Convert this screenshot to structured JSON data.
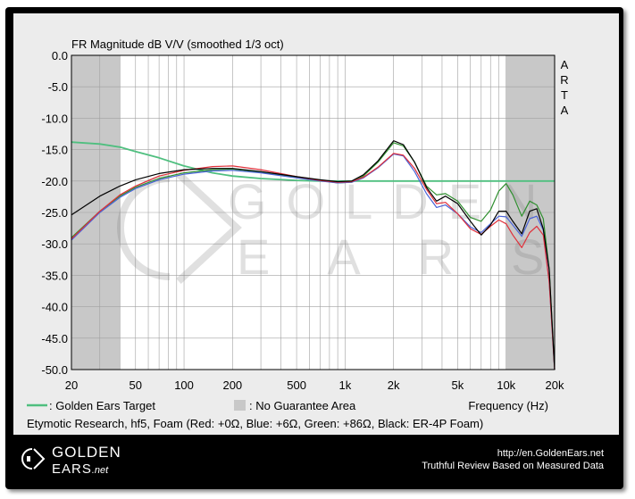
{
  "chart_data": {
    "type": "line",
    "title": "FR Magnitude dB V/V (smoothed 1/3 oct)",
    "side_label": [
      "A",
      "R",
      "T",
      "A"
    ],
    "xlabel": "Frequency (Hz)",
    "x_scale": "log",
    "xlim": [
      20,
      20000
    ],
    "ylim": [
      -50,
      0
    ],
    "x_ticks": [
      20,
      50,
      100,
      200,
      500,
      1000,
      2000,
      5000,
      10000,
      20000
    ],
    "x_tick_labels": [
      "20",
      "50",
      "100",
      "200",
      "500",
      "1k",
      "2k",
      "5k",
      "10k",
      "20k"
    ],
    "y_ticks": [
      0,
      -5,
      -10,
      -15,
      -20,
      -25,
      -30,
      -35,
      -40,
      -45,
      -50
    ],
    "y_tick_labels": [
      "0.0",
      "-5.0",
      "-10.0",
      "-15.0",
      "-20.0",
      "-25.0",
      "-30.0",
      "-35.0",
      "-40.0",
      "-45.0",
      "-50.0"
    ],
    "grid": true,
    "shaded_regions": [
      {
        "x_from": 20,
        "x_to": 40
      },
      {
        "x_from": 10000,
        "x_to": 20000
      }
    ],
    "series": [
      {
        "key": "target",
        "color": "#4fbf7f",
        "x": [
          20,
          30,
          40,
          50,
          70,
          100,
          150,
          200,
          300,
          500,
          700,
          1000,
          1500,
          2000,
          3000,
          5000,
          7000,
          10000,
          15000,
          20000
        ],
        "y": [
          -13.8,
          -14.1,
          -14.6,
          -15.3,
          -16.3,
          -17.6,
          -18.7,
          -19.2,
          -19.6,
          -19.9,
          -20.0,
          -20.0,
          -20.0,
          -20.0,
          -20.0,
          -20.0,
          -20.0,
          -20.0,
          -20.0,
          -20.0
        ]
      },
      {
        "key": "red",
        "color": "#e0303a",
        "x": [
          20,
          30,
          40,
          50,
          70,
          100,
          150,
          200,
          300,
          500,
          700,
          900,
          1100,
          1300,
          1600,
          2000,
          2300,
          2700,
          3200,
          3700,
          4200,
          5000,
          6000,
          7000,
          8000,
          9000,
          10000,
          11000,
          12500,
          14000,
          15500,
          17000,
          18500,
          20000
        ],
        "y": [
          -29.2,
          -24.8,
          -22.2,
          -20.8,
          -19.2,
          -18.3,
          -17.7,
          -17.6,
          -18.2,
          -19.3,
          -19.9,
          -20.2,
          -20.1,
          -19.4,
          -17.8,
          -15.6,
          -15.9,
          -18.0,
          -21.3,
          -23.6,
          -23.4,
          -25.2,
          -27.6,
          -28.5,
          -27.2,
          -26.2,
          -26.8,
          -28.6,
          -30.6,
          -28.2,
          -27.2,
          -28.6,
          -36.0,
          -50.0
        ]
      },
      {
        "key": "blue",
        "color": "#4a63d8",
        "x": [
          20,
          30,
          40,
          50,
          70,
          100,
          150,
          200,
          300,
          500,
          700,
          900,
          1100,
          1300,
          1600,
          2000,
          2300,
          2700,
          3200,
          3700,
          4200,
          5000,
          6000,
          7000,
          8000,
          9000,
          10000,
          11000,
          12500,
          14000,
          15500,
          17000,
          18500,
          20000
        ],
        "y": [
          -29.4,
          -25.0,
          -22.6,
          -21.2,
          -19.8,
          -18.9,
          -18.4,
          -18.3,
          -18.7,
          -19.5,
          -20.0,
          -20.3,
          -20.2,
          -19.5,
          -17.9,
          -15.7,
          -16.0,
          -18.5,
          -22.0,
          -24.2,
          -23.8,
          -25.2,
          -27.3,
          -28.2,
          -26.8,
          -25.6,
          -25.7,
          -27.0,
          -28.8,
          -26.0,
          -25.6,
          -27.8,
          -36.0,
          -50.0
        ]
      },
      {
        "key": "green",
        "color": "#2f8f2f",
        "x": [
          20,
          30,
          40,
          50,
          70,
          100,
          150,
          200,
          300,
          500,
          700,
          900,
          1100,
          1300,
          1600,
          2000,
          2300,
          2700,
          3200,
          3700,
          4200,
          5000,
          6000,
          7000,
          8000,
          9000,
          10000,
          11000,
          12500,
          14000,
          15500,
          17000,
          18500,
          20000
        ],
        "y": [
          -29.0,
          -24.8,
          -22.4,
          -21.0,
          -19.6,
          -18.7,
          -18.2,
          -18.1,
          -18.6,
          -19.4,
          -19.9,
          -20.3,
          -20.2,
          -19.2,
          -17.0,
          -13.9,
          -14.4,
          -17.0,
          -20.8,
          -22.2,
          -22.0,
          -23.2,
          -25.8,
          -26.4,
          -24.6,
          -21.6,
          -20.4,
          -22.2,
          -25.6,
          -23.2,
          -23.8,
          -26.0,
          -34.0,
          -50.0
        ]
      },
      {
        "key": "black",
        "color": "#000000",
        "x": [
          20,
          30,
          40,
          50,
          70,
          100,
          150,
          200,
          300,
          500,
          700,
          900,
          1100,
          1300,
          1600,
          2000,
          2300,
          2700,
          3200,
          3700,
          4200,
          5000,
          6000,
          7000,
          8000,
          9000,
          10000,
          11000,
          12500,
          14000,
          15500,
          17000,
          18500,
          20000
        ],
        "y": [
          -25.4,
          -22.4,
          -20.8,
          -19.8,
          -18.8,
          -18.2,
          -18.0,
          -18.0,
          -18.5,
          -19.3,
          -19.8,
          -20.1,
          -20.0,
          -19.0,
          -16.8,
          -13.6,
          -14.2,
          -17.0,
          -21.0,
          -23.2,
          -22.4,
          -23.6,
          -26.4,
          -28.6,
          -27.0,
          -24.8,
          -24.8,
          -26.4,
          -28.4,
          -24.8,
          -24.4,
          -27.6,
          -34.0,
          -50.0
        ]
      }
    ],
    "legend": [
      {
        "swatch": "line",
        "color": "#4fbf7f",
        "text": ": Golden Ears Target"
      },
      {
        "swatch": "box",
        "color": "#c8c8c8",
        "text": ": No Guarantee Area"
      }
    ],
    "caption": "Etymotic Research, hf5, Foam (Red: +0Ω, Blue: +6Ω, Green: +86Ω, Black: ER-4P Foam)",
    "watermark": [
      "GOLDEN",
      "EARS"
    ]
  },
  "footer": {
    "logo_line1": "GOLDEN",
    "logo_line2": "EARS",
    "logo_suffix": ".net",
    "url": "http://en.GoldenEars.net",
    "tagline": "Truthful Review Based on Measured Data"
  }
}
